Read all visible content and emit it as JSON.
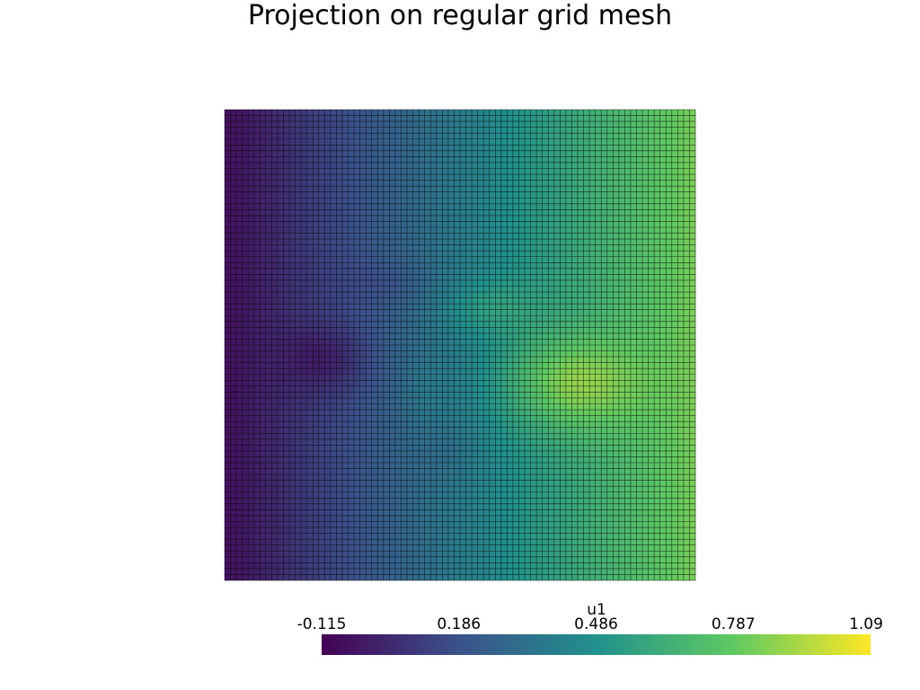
{
  "title": "Projection on regular grid mesh",
  "chart_data": {
    "type": "heatmap",
    "title": "Projection on regular grid mesh",
    "field_name": "u1",
    "colormap": "viridis",
    "show_edges": true,
    "edge_color": "#000000",
    "grid_cells": [
      80,
      80
    ],
    "value_range": [
      -0.115,
      1.09
    ],
    "colorbar": {
      "title": "u1",
      "placement": "bottom",
      "ticks": [
        "-0.115",
        "0.186",
        "0.486",
        "0.787",
        "1.09"
      ],
      "tick_values": [
        -0.115,
        0.186,
        0.486,
        0.787,
        1.09
      ]
    },
    "colormap_stops": [
      "#440154",
      "#3b528b",
      "#21918c",
      "#5ec962",
      "#fde725"
    ]
  }
}
